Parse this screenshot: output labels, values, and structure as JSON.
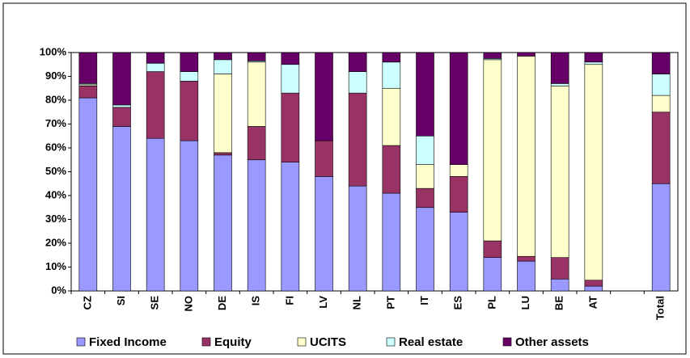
{
  "chart_data": {
    "type": "stacked_bar",
    "categories": [
      "CZ",
      "SI",
      "SE",
      "NO",
      "DE",
      "IS",
      "FI",
      "LV",
      "NL",
      "PT",
      "IT",
      "ES",
      "PL",
      "LU",
      "BE",
      "AT",
      null,
      "Total"
    ],
    "series": [
      {
        "name": "Fixed Income",
        "color": "#9999ff",
        "values": [
          81,
          69,
          64,
          63,
          57,
          55,
          54,
          48,
          44,
          41,
          35,
          33,
          14,
          12.5,
          5,
          2,
          null,
          45
        ]
      },
      {
        "name": "Equity",
        "color": "#993366",
        "values": [
          5,
          8,
          28,
          25,
          1,
          14,
          29,
          15,
          39,
          20,
          8,
          15,
          7,
          2,
          9,
          2.5,
          null,
          30
        ]
      },
      {
        "name": "UCITS",
        "color": "#ffffcc",
        "values": [
          0.5,
          0,
          0,
          0,
          33,
          27,
          0,
          0,
          0,
          24,
          10,
          5,
          76,
          84,
          72,
          90.5,
          null,
          7
        ]
      },
      {
        "name": "Real estate",
        "color": "#ccffff",
        "values": [
          0.5,
          1,
          3.5,
          4,
          6,
          0.5,
          12,
          0,
          9,
          11,
          12,
          0,
          0.5,
          0,
          1,
          1,
          null,
          9
        ]
      },
      {
        "name": "Other assets",
        "color": "#660066",
        "values": [
          13,
          22,
          4.5,
          8,
          3,
          3.5,
          5,
          37,
          8,
          4,
          35,
          47,
          2.5,
          1.5,
          13,
          4,
          null,
          9
        ]
      }
    ],
    "ylim": [
      0,
      100
    ],
    "yticks": [
      {
        "value": 0,
        "label": "0%"
      },
      {
        "value": 10,
        "label": "10%"
      },
      {
        "value": 20,
        "label": "20%"
      },
      {
        "value": 30,
        "label": "30%"
      },
      {
        "value": 40,
        "label": "40%"
      },
      {
        "value": 50,
        "label": "50%"
      },
      {
        "value": 60,
        "label": "60%"
      },
      {
        "value": 70,
        "label": "70%"
      },
      {
        "value": 80,
        "label": "80%"
      },
      {
        "value": 90,
        "label": "90%"
      },
      {
        "value": 100,
        "label": "100%"
      }
    ],
    "grid": false,
    "legend": "bottom"
  }
}
